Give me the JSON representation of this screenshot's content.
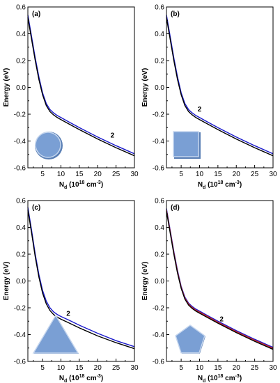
{
  "chart_data": [
    {
      "type": "line",
      "panel_label": "(a)",
      "shape": "circle",
      "curve_label": "2",
      "xlabel_main": "N",
      "xlabel_sub": "d",
      "xlabel_unit": " (10",
      "xlabel_exp": "18",
      "xlabel_unit2": " cm",
      "xlabel_exp2": "-3",
      "xlabel_close": ")",
      "ylabel": "Energy (eV)",
      "xlim": [
        1,
        30
      ],
      "ylim": [
        -0.6,
        0.6
      ],
      "xticks": [
        5,
        10,
        15,
        20,
        25,
        30
      ],
      "yticks": [
        -0.6,
        -0.4,
        -0.2,
        0.0,
        0.2,
        0.4,
        0.6
      ],
      "label_at": [
        24,
        -0.375
      ],
      "series": [
        {
          "color": "#1a1acc",
          "x": [
            1,
            2,
            3,
            4,
            5,
            6,
            7,
            8,
            9,
            10,
            12,
            15,
            20,
            25,
            30
          ],
          "y": [
            0.54,
            0.38,
            0.22,
            0.08,
            -0.04,
            -0.12,
            -0.165,
            -0.19,
            -0.21,
            -0.225,
            -0.255,
            -0.3,
            -0.37,
            -0.435,
            -0.495
          ]
        },
        {
          "color": "#000000",
          "x": [
            1,
            2,
            3,
            4,
            5,
            6,
            7,
            8,
            9,
            10,
            12,
            15,
            20,
            25,
            30
          ],
          "y": [
            0.52,
            0.36,
            0.2,
            0.06,
            -0.055,
            -0.135,
            -0.18,
            -0.205,
            -0.225,
            -0.24,
            -0.27,
            -0.315,
            -0.385,
            -0.45,
            -0.51
          ]
        }
      ]
    },
    {
      "type": "line",
      "panel_label": "(b)",
      "shape": "square",
      "curve_label": "2",
      "xlabel_main": "N",
      "xlabel_sub": "d",
      "xlabel_unit": " (10",
      "xlabel_exp": "18",
      "xlabel_unit2": " cm",
      "xlabel_exp2": "-3",
      "xlabel_close": ")",
      "ylabel": "Energy (eV)",
      "xlim": [
        1,
        30
      ],
      "ylim": [
        -0.6,
        0.6
      ],
      "xticks": [
        5,
        10,
        15,
        20,
        25,
        30
      ],
      "yticks": [
        -0.6,
        -0.4,
        -0.2,
        0.0,
        0.2,
        0.4,
        0.6
      ],
      "label_at": [
        10,
        -0.18
      ],
      "series": [
        {
          "color": "#1a1acc",
          "x": [
            1,
            2,
            3,
            4,
            5,
            6,
            7,
            8,
            9,
            10,
            12,
            15,
            20,
            25,
            30
          ],
          "y": [
            0.54,
            0.38,
            0.22,
            0.08,
            -0.04,
            -0.12,
            -0.165,
            -0.19,
            -0.21,
            -0.225,
            -0.255,
            -0.3,
            -0.37,
            -0.435,
            -0.495
          ]
        },
        {
          "color": "#000000",
          "x": [
            1,
            2,
            3,
            4,
            5,
            6,
            7,
            8,
            9,
            10,
            12,
            15,
            20,
            25,
            30
          ],
          "y": [
            0.52,
            0.36,
            0.2,
            0.06,
            -0.055,
            -0.135,
            -0.18,
            -0.205,
            -0.225,
            -0.24,
            -0.27,
            -0.315,
            -0.385,
            -0.45,
            -0.51
          ]
        }
      ]
    },
    {
      "type": "line",
      "panel_label": "(c)",
      "shape": "triangle",
      "curve_label": "2",
      "xlabel_main": "N",
      "xlabel_sub": "d",
      "xlabel_unit": " (10",
      "xlabel_exp": "18",
      "xlabel_unit2": " cm",
      "xlabel_exp2": "-3",
      "xlabel_close": ")",
      "ylabel": "Energy (eV)",
      "xlim": [
        1,
        30
      ],
      "ylim": [
        -0.6,
        0.6
      ],
      "xticks": [
        5,
        10,
        15,
        20,
        25,
        30
      ],
      "yticks": [
        -0.6,
        -0.4,
        -0.2,
        0.0,
        0.2,
        0.4,
        0.6
      ],
      "label_at": [
        12,
        -0.26
      ],
      "series": [
        {
          "color": "#1a1acc",
          "x": [
            1,
            2,
            3,
            4,
            5,
            6,
            7,
            8,
            9,
            10,
            12,
            15,
            20,
            25,
            30
          ],
          "y": [
            0.55,
            0.38,
            0.2,
            0.05,
            -0.07,
            -0.15,
            -0.2,
            -0.23,
            -0.25,
            -0.265,
            -0.29,
            -0.33,
            -0.39,
            -0.445,
            -0.49
          ]
        },
        {
          "color": "#000000",
          "x": [
            1,
            2,
            3,
            4,
            5,
            6,
            7,
            8,
            9,
            10,
            12,
            15,
            20,
            25,
            30
          ],
          "y": [
            0.53,
            0.36,
            0.18,
            0.03,
            -0.09,
            -0.17,
            -0.22,
            -0.25,
            -0.27,
            -0.285,
            -0.31,
            -0.35,
            -0.41,
            -0.46,
            -0.505
          ]
        }
      ]
    },
    {
      "type": "line",
      "panel_label": "(d)",
      "shape": "pentagon",
      "curve_label": "2",
      "xlabel_main": "N",
      "xlabel_sub": "d",
      "xlabel_unit": " (10",
      "xlabel_exp": "18",
      "xlabel_unit2": " cm",
      "xlabel_exp2": "-3",
      "xlabel_close": ")",
      "ylabel": "Energy (eV)",
      "xlim": [
        1,
        30
      ],
      "ylim": [
        -0.6,
        0.6
      ],
      "xticks": [
        5,
        10,
        15,
        20,
        25,
        30
      ],
      "yticks": [
        -0.6,
        -0.4,
        -0.2,
        0.0,
        0.2,
        0.4,
        0.6
      ],
      "label_at": [
        16,
        -0.3
      ],
      "series": [
        {
          "color": "#1a1acc",
          "x": [
            1,
            2,
            3,
            4,
            5,
            6,
            7,
            8,
            9,
            10,
            12,
            15,
            20,
            25,
            30
          ],
          "y": [
            0.54,
            0.38,
            0.22,
            0.08,
            -0.04,
            -0.12,
            -0.165,
            -0.19,
            -0.21,
            -0.225,
            -0.255,
            -0.3,
            -0.37,
            -0.435,
            -0.495
          ]
        },
        {
          "color": "#cc2222",
          "x": [
            1,
            2,
            3,
            4,
            5,
            6,
            7,
            8,
            9,
            10,
            12,
            15,
            20,
            25,
            30
          ],
          "y": [
            0.53,
            0.37,
            0.21,
            0.07,
            -0.048,
            -0.128,
            -0.172,
            -0.198,
            -0.218,
            -0.232,
            -0.262,
            -0.308,
            -0.378,
            -0.442,
            -0.502
          ]
        },
        {
          "color": "#000000",
          "x": [
            1,
            2,
            3,
            4,
            5,
            6,
            7,
            8,
            9,
            10,
            12,
            15,
            20,
            25,
            30
          ],
          "y": [
            0.52,
            0.36,
            0.2,
            0.06,
            -0.055,
            -0.135,
            -0.18,
            -0.205,
            -0.225,
            -0.24,
            -0.27,
            -0.315,
            -0.385,
            -0.45,
            -0.51
          ]
        }
      ]
    }
  ]
}
